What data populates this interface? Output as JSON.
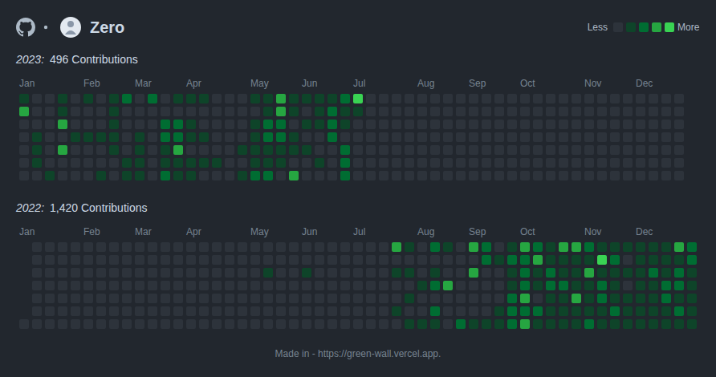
{
  "header": {
    "name": "Zero",
    "legend_low": "Less",
    "legend_high": "More"
  },
  "color_scale": {
    "levels": [
      0,
      1,
      2,
      3,
      4
    ],
    "colors": [
      "#2d333b",
      "#0e4429",
      "#006d32",
      "#26a641",
      "#39d353"
    ]
  },
  "chart_data": [
    {
      "type": "heatmap",
      "title": "2023:",
      "subtitle": "496 Contributions",
      "tick_labels": "x",
      "categories": [
        "Jan",
        null,
        null,
        null,
        null,
        "Feb",
        null,
        null,
        null,
        "Mar",
        null,
        null,
        null,
        "Apr",
        null,
        null,
        null,
        null,
        "May",
        null,
        null,
        null,
        "Jun",
        null,
        null,
        null,
        "Jul",
        null,
        null,
        null,
        null,
        "Aug",
        null,
        null,
        null,
        "Sep",
        null,
        null,
        null,
        "Oct",
        null,
        null,
        null,
        null,
        "Nov",
        null,
        null,
        null,
        "Dec",
        null,
        null,
        null
      ],
      "values": [
        [
          1,
          3,
          0,
          0,
          0,
          0,
          0
        ],
        [
          0,
          0,
          0,
          1,
          1,
          1,
          0
        ],
        [
          0,
          0,
          0,
          0,
          0,
          0,
          1
        ],
        [
          1,
          1,
          3,
          0,
          3,
          0,
          0
        ],
        [
          0,
          0,
          0,
          1,
          0,
          0,
          0
        ],
        [
          1,
          0,
          0,
          1,
          0,
          0,
          0
        ],
        [
          0,
          0,
          0,
          1,
          0,
          0,
          1
        ],
        [
          1,
          1,
          1,
          1,
          1,
          0,
          0
        ],
        [
          2,
          0,
          0,
          0,
          0,
          1,
          1
        ],
        [
          0,
          0,
          0,
          1,
          1,
          1,
          1
        ],
        [
          2,
          0,
          0,
          0,
          0,
          0,
          0
        ],
        [
          0,
          0,
          2,
          2,
          1,
          1,
          2
        ],
        [
          1,
          0,
          2,
          2,
          3,
          1,
          1
        ],
        [
          1,
          0,
          1,
          1,
          0,
          1,
          1
        ],
        [
          1,
          0,
          0,
          1,
          0,
          1,
          0
        ],
        [
          0,
          0,
          0,
          0,
          0,
          1,
          0
        ],
        [
          0,
          0,
          0,
          0,
          0,
          0,
          0
        ],
        [
          0,
          0,
          0,
          0,
          1,
          0,
          1
        ],
        [
          1,
          0,
          1,
          1,
          1,
          1,
          2
        ],
        [
          1,
          1,
          2,
          2,
          1,
          1,
          2
        ],
        [
          3,
          3,
          2,
          2,
          1,
          1,
          0
        ],
        [
          1,
          1,
          0,
          1,
          1,
          0,
          3
        ],
        [
          1,
          0,
          1,
          0,
          1,
          0,
          0
        ],
        [
          1,
          1,
          1,
          0,
          0,
          1,
          0
        ],
        [
          1,
          2,
          2,
          2,
          0,
          0,
          0
        ],
        [
          2,
          1,
          1,
          0,
          2,
          2,
          2
        ],
        [
          4,
          1,
          0,
          0,
          0,
          0,
          0
        ],
        [
          0,
          0,
          0,
          0,
          0,
          0,
          0
        ],
        [
          0,
          0,
          0,
          0,
          0,
          0,
          0
        ],
        [
          0,
          0,
          0,
          0,
          0,
          0,
          0
        ],
        [
          0,
          0,
          0,
          0,
          0,
          0,
          0
        ],
        [
          0,
          0,
          0,
          0,
          0,
          0,
          0
        ],
        [
          0,
          0,
          0,
          0,
          0,
          0,
          0
        ],
        [
          0,
          0,
          0,
          0,
          0,
          0,
          0
        ],
        [
          0,
          0,
          0,
          0,
          0,
          0,
          0
        ],
        [
          0,
          0,
          0,
          0,
          0,
          0,
          0
        ],
        [
          0,
          0,
          0,
          0,
          0,
          0,
          0
        ],
        [
          0,
          0,
          0,
          0,
          0,
          0,
          0
        ],
        [
          0,
          0,
          0,
          0,
          0,
          0,
          0
        ],
        [
          0,
          0,
          0,
          0,
          0,
          0,
          0
        ],
        [
          0,
          0,
          0,
          0,
          0,
          0,
          0
        ],
        [
          0,
          0,
          0,
          0,
          0,
          0,
          0
        ],
        [
          0,
          0,
          0,
          0,
          0,
          0,
          0
        ],
        [
          0,
          0,
          0,
          0,
          0,
          0,
          0
        ],
        [
          0,
          0,
          0,
          0,
          0,
          0,
          0
        ],
        [
          0,
          0,
          0,
          0,
          0,
          0,
          0
        ],
        [
          0,
          0,
          0,
          0,
          0,
          0,
          0
        ],
        [
          0,
          0,
          0,
          0,
          0,
          0,
          0
        ],
        [
          0,
          0,
          0,
          0,
          0,
          0,
          0
        ],
        [
          0,
          0,
          0,
          0,
          0,
          0,
          0
        ],
        [
          0,
          0,
          0,
          0,
          0,
          0,
          0
        ],
        [
          0,
          0,
          0,
          0,
          0,
          0,
          0
        ]
      ]
    },
    {
      "type": "heatmap",
      "title": "2022:",
      "subtitle": "1,420 Contributions",
      "tick_labels": "x",
      "categories": [
        "Jan",
        null,
        null,
        null,
        null,
        "Feb",
        null,
        null,
        null,
        "Mar",
        null,
        null,
        null,
        "Apr",
        null,
        null,
        null,
        null,
        "May",
        null,
        null,
        null,
        "Jun",
        null,
        null,
        null,
        "Jul",
        null,
        null,
        null,
        null,
        "Aug",
        null,
        null,
        null,
        "Sep",
        null,
        null,
        null,
        "Oct",
        null,
        null,
        null,
        null,
        "Nov",
        null,
        null,
        null,
        "Dec",
        null,
        null,
        null,
        null
      ],
      "values": [
        [
          null,
          null,
          null,
          null,
          null,
          null,
          0
        ],
        [
          0,
          0,
          0,
          0,
          0,
          0,
          0
        ],
        [
          0,
          0,
          0,
          0,
          0,
          0,
          0
        ],
        [
          0,
          0,
          0,
          0,
          0,
          0,
          0
        ],
        [
          0,
          0,
          0,
          0,
          0,
          0,
          0
        ],
        [
          0,
          0,
          0,
          0,
          0,
          0,
          0
        ],
        [
          0,
          0,
          0,
          0,
          0,
          0,
          0
        ],
        [
          0,
          0,
          0,
          0,
          0,
          0,
          0
        ],
        [
          0,
          0,
          0,
          0,
          0,
          0,
          0
        ],
        [
          0,
          0,
          0,
          0,
          0,
          0,
          0
        ],
        [
          0,
          0,
          0,
          0,
          0,
          0,
          0
        ],
        [
          0,
          0,
          0,
          0,
          0,
          0,
          0
        ],
        [
          0,
          0,
          0,
          0,
          0,
          0,
          0
        ],
        [
          0,
          0,
          0,
          0,
          0,
          0,
          0
        ],
        [
          0,
          0,
          0,
          0,
          0,
          0,
          0
        ],
        [
          0,
          0,
          0,
          0,
          0,
          0,
          0
        ],
        [
          0,
          0,
          0,
          0,
          0,
          0,
          0
        ],
        [
          0,
          0,
          0,
          0,
          0,
          0,
          0
        ],
        [
          0,
          0,
          0,
          0,
          0,
          0,
          0
        ],
        [
          0,
          0,
          1,
          0,
          0,
          0,
          0
        ],
        [
          0,
          0,
          0,
          0,
          0,
          0,
          0
        ],
        [
          0,
          0,
          0,
          0,
          0,
          0,
          0
        ],
        [
          0,
          0,
          1,
          0,
          0,
          0,
          0
        ],
        [
          0,
          0,
          0,
          0,
          0,
          0,
          0
        ],
        [
          0,
          0,
          0,
          0,
          0,
          0,
          0
        ],
        [
          0,
          0,
          0,
          0,
          0,
          0,
          0
        ],
        [
          0,
          0,
          0,
          0,
          0,
          0,
          0
        ],
        [
          0,
          0,
          0,
          0,
          0,
          0,
          0
        ],
        [
          0,
          0,
          0,
          0,
          0,
          0,
          0
        ],
        [
          3,
          0,
          1,
          0,
          0,
          1,
          0
        ],
        [
          1,
          0,
          1,
          0,
          1,
          0,
          1
        ],
        [
          0,
          0,
          0,
          1,
          0,
          0,
          1
        ],
        [
          2,
          0,
          1,
          2,
          0,
          2,
          1
        ],
        [
          1,
          0,
          0,
          3,
          0,
          0,
          0
        ],
        [
          0,
          0,
          0,
          0,
          0,
          0,
          2
        ],
        [
          3,
          0,
          3,
          0,
          0,
          0,
          1
        ],
        [
          2,
          2,
          0,
          0,
          0,
          0,
          1
        ],
        [
          0,
          1,
          0,
          0,
          0,
          1,
          1
        ],
        [
          1,
          2,
          1,
          1,
          2,
          2,
          2
        ],
        [
          3,
          2,
          2,
          2,
          3,
          2,
          3
        ],
        [
          2,
          3,
          1,
          1,
          0,
          2,
          1
        ],
        [
          1,
          1,
          2,
          2,
          1,
          1,
          1
        ],
        [
          3,
          1,
          1,
          2,
          1,
          1,
          1
        ],
        [
          3,
          1,
          1,
          1,
          3,
          1,
          1
        ],
        [
          2,
          1,
          3,
          1,
          1,
          1,
          2
        ],
        [
          1,
          4,
          1,
          2,
          2,
          1,
          1
        ],
        [
          1,
          2,
          1,
          1,
          1,
          2,
          1
        ],
        [
          1,
          0,
          1,
          0,
          1,
          1,
          1
        ],
        [
          1,
          1,
          1,
          1,
          1,
          1,
          1
        ],
        [
          1,
          1,
          2,
          1,
          1,
          1,
          1
        ],
        [
          1,
          1,
          1,
          2,
          2,
          1,
          1
        ],
        [
          3,
          1,
          2,
          2,
          1,
          2,
          1
        ],
        [
          2,
          2,
          1,
          1,
          1,
          1,
          1
        ]
      ]
    }
  ],
  "footer": "Made in - https://green-wall.vercel.app."
}
